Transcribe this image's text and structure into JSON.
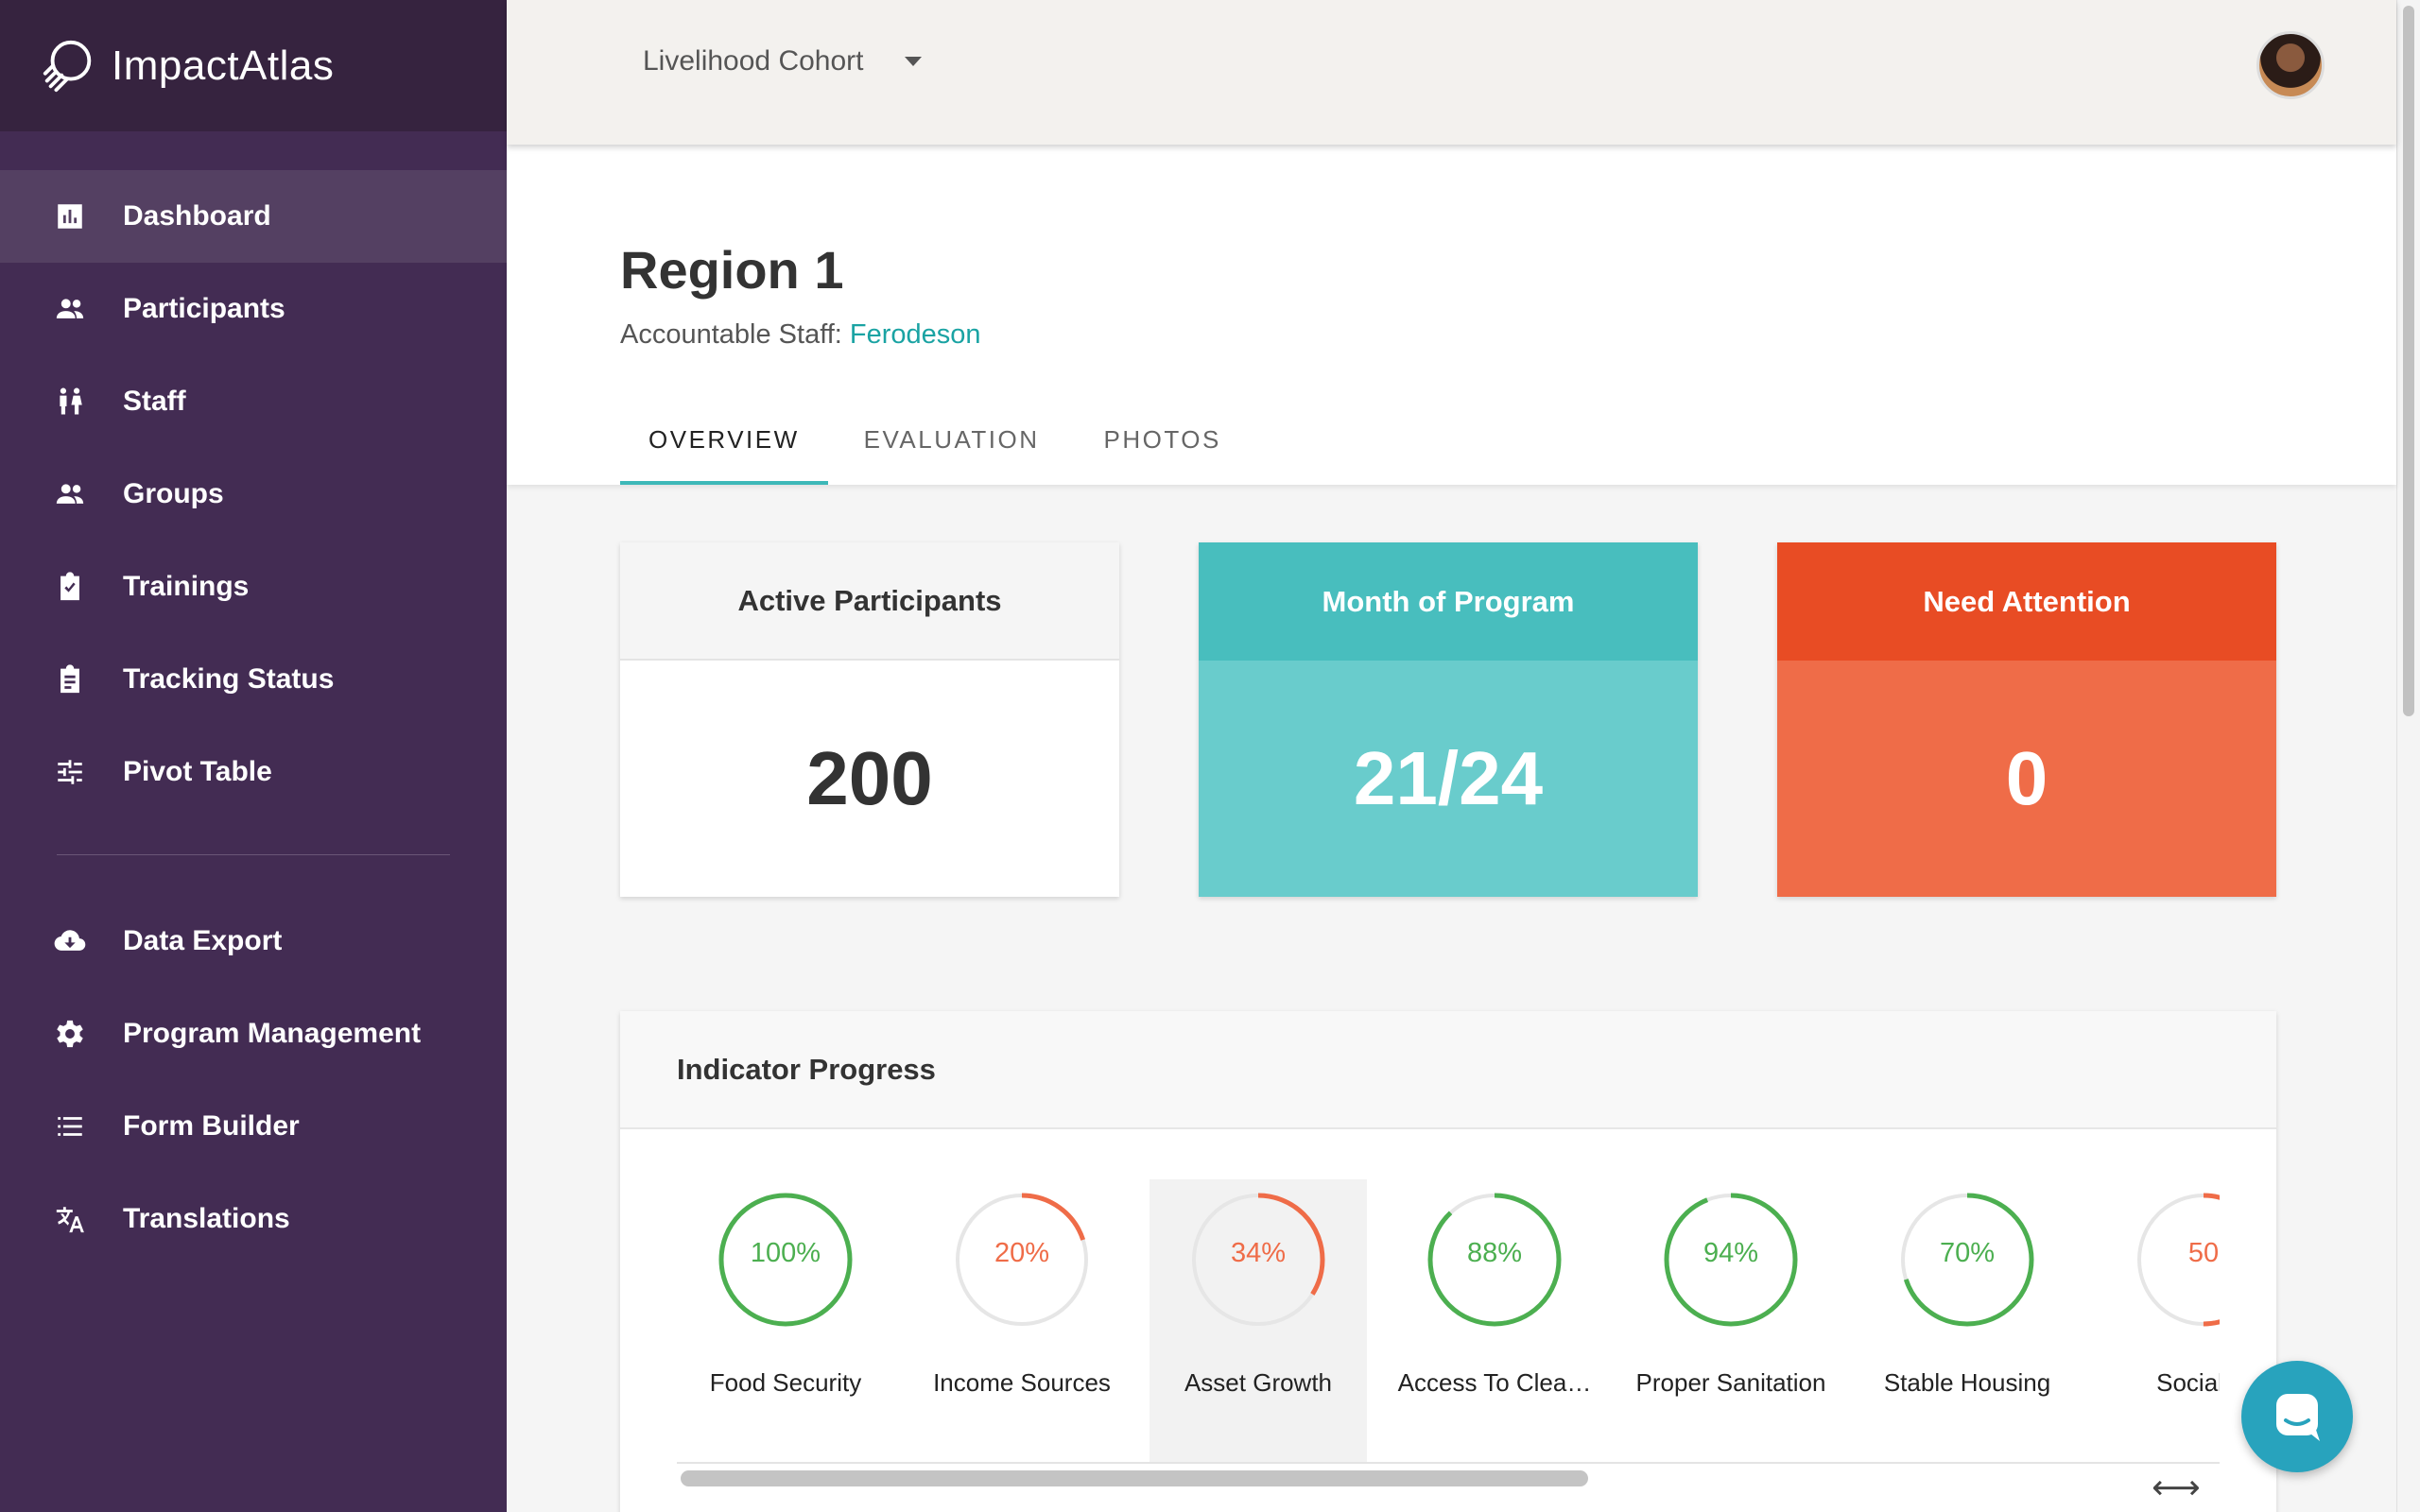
{
  "brand": {
    "name": "ImpactAtlas",
    "logo_icon": "atlas-globe-icon"
  },
  "topbar": {
    "cohort": "Livelihood Cohort",
    "avatar_icon": "user-avatar"
  },
  "sidebar": {
    "items": [
      {
        "label": "Dashboard",
        "icon": "bar-chart-icon",
        "active": true
      },
      {
        "label": "Participants",
        "icon": "people-icon"
      },
      {
        "label": "Staff",
        "icon": "staff-icon"
      },
      {
        "label": "Groups",
        "icon": "groups-icon"
      },
      {
        "label": "Trainings",
        "icon": "clipboard-check-icon"
      },
      {
        "label": "Tracking Status",
        "icon": "clipboard-list-icon"
      },
      {
        "label": "Pivot Table",
        "icon": "sliders-icon"
      }
    ],
    "items_secondary": [
      {
        "label": "Data Export",
        "icon": "cloud-download-icon"
      },
      {
        "label": "Program Management",
        "icon": "gear-icon"
      },
      {
        "label": "Form Builder",
        "icon": "list-icon"
      },
      {
        "label": "Translations",
        "icon": "translate-icon"
      }
    ]
  },
  "header": {
    "title": "Region 1",
    "staff_prefix": "Accountable Staff:",
    "staff_name": "Ferodeson",
    "tabs": [
      {
        "label": "OVERVIEW",
        "active": true
      },
      {
        "label": "EVALUATION"
      },
      {
        "label": "PHOTOS"
      }
    ]
  },
  "cards": [
    {
      "title": "Active Participants",
      "value": "200",
      "style": "white"
    },
    {
      "title": "Month of Program",
      "value": "21/24",
      "style": "teal"
    },
    {
      "title": "Need Attention",
      "value": "0",
      "style": "orange"
    }
  ],
  "indicator": {
    "title": "Indicator Progress",
    "colors": {
      "good": "#4caf50",
      "bad": "#ef6c48",
      "track": "#e6e6e6"
    },
    "items": [
      {
        "label": "Food Security",
        "percent": 100,
        "display": "100%",
        "status": "good"
      },
      {
        "label": "Income Sources",
        "percent": 20,
        "display": "20%",
        "status": "bad"
      },
      {
        "label": "Asset Growth",
        "percent": 34,
        "display": "34%",
        "status": "bad",
        "selected": true
      },
      {
        "label": "Access To Clea…",
        "percent": 88,
        "display": "88%",
        "status": "good"
      },
      {
        "label": "Proper Sanitation",
        "percent": 94,
        "display": "94%",
        "status": "good"
      },
      {
        "label": "Stable Housing",
        "percent": 70,
        "display": "70%",
        "status": "good"
      },
      {
        "label": "Social In",
        "percent": 50,
        "display": "50",
        "status": "bad"
      }
    ],
    "scroll_arrows": "⟷"
  },
  "chat": {
    "icon": "chat-bubble-icon"
  }
}
